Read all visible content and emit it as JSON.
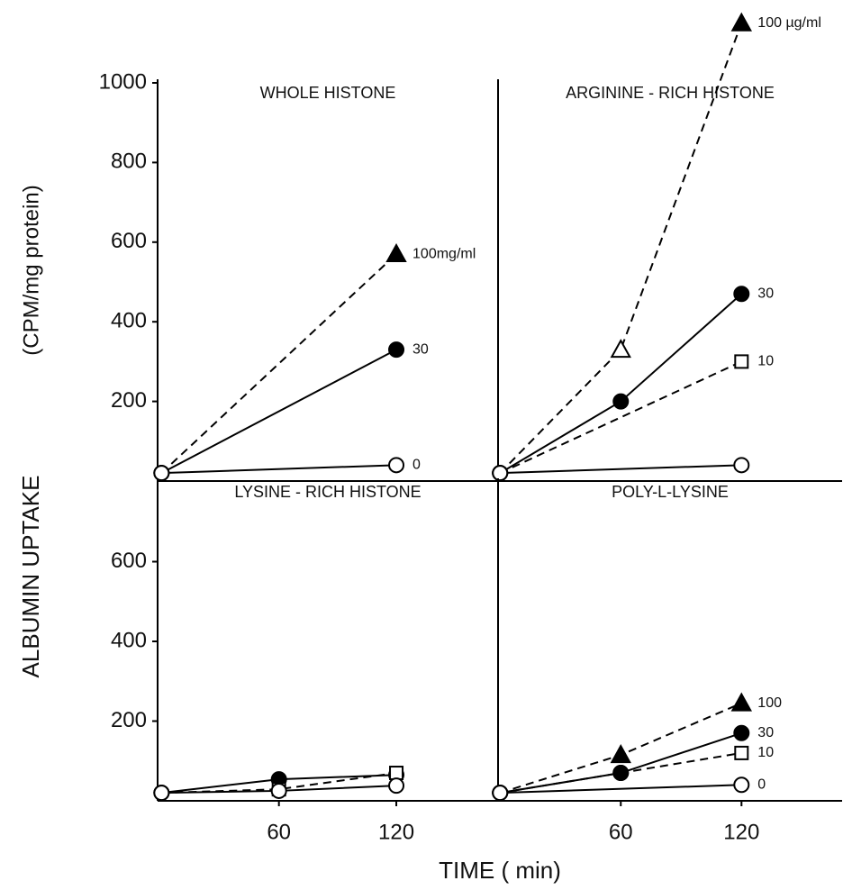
{
  "chart_data": [
    {
      "type": "line",
      "title": "WHOLE HISTONE",
      "ylabel": "(CPM/mg protein)",
      "xlim": [
        -2,
        172
      ],
      "ylim": [
        0,
        1000
      ],
      "yticks": [
        200,
        400,
        600,
        800,
        1000
      ],
      "series": [
        {
          "name": "100mg/ml",
          "x": [
            0,
            120
          ],
          "values": [
            20,
            570
          ],
          "dash": true,
          "markers": [
            "circle-open",
            "triangle-filled"
          ]
        },
        {
          "name": "30",
          "x": [
            0,
            120
          ],
          "values": [
            20,
            330
          ],
          "dash": false,
          "markers": [
            "circle-open",
            "circle-filled"
          ]
        },
        {
          "name": "0",
          "x": [
            0,
            120
          ],
          "values": [
            20,
            40
          ],
          "dash": false,
          "markers": [
            "circle-open",
            "circle-open"
          ]
        }
      ]
    },
    {
      "type": "line",
      "title": "ARGININE - RICH HISTONE",
      "xlim": [
        -1,
        170
      ],
      "ylim": [
        0,
        1000
      ],
      "series": [
        {
          "name": "100 µg/ml",
          "x": [
            0,
            60,
            120
          ],
          "values": [
            20,
            330,
            1150
          ],
          "dash": true,
          "markers": [
            "circle-open",
            "triangle-open",
            "triangle-filled"
          ]
        },
        {
          "name": "30",
          "x": [
            0,
            60,
            120
          ],
          "values": [
            20,
            200,
            470
          ],
          "dash": false,
          "markers": [
            "circle-open",
            "circle-filled",
            "circle-filled"
          ]
        },
        {
          "name": "10",
          "x": [
            0,
            120
          ],
          "values": [
            20,
            300
          ],
          "dash": true,
          "markers": [
            "circle-open",
            "square-open"
          ]
        },
        {
          "x": [
            0,
            120
          ],
          "values": [
            20,
            40
          ],
          "dash": false,
          "markers": [
            "circle-open",
            "circle-open"
          ]
        }
      ]
    },
    {
      "type": "line",
      "title": "LYSINE - RICH HISTONE",
      "ylabel": "ALBUMIN UPTAKE",
      "xlim": [
        -2,
        172
      ],
      "ylim": [
        0,
        800
      ],
      "yticks": [
        200,
        400,
        600
      ],
      "xticks": [
        60,
        120
      ],
      "series": [
        {
          "x": [
            0,
            60,
            120
          ],
          "values": [
            20,
            54,
            65
          ],
          "dash": false,
          "markers": [
            "circle-open",
            "circle-filled",
            "circle-filled"
          ]
        },
        {
          "x": [
            0,
            60,
            120
          ],
          "values": [
            20,
            29,
            70
          ],
          "dash": true,
          "markers": [
            "circle-open",
            "square-open",
            "square-open"
          ]
        },
        {
          "x": [
            0,
            60,
            120
          ],
          "values": [
            20,
            25,
            38
          ],
          "dash": false,
          "markers": [
            "circle-open",
            "circle-open",
            "circle-open"
          ]
        }
      ]
    },
    {
      "type": "line",
      "title": "POLY-L-LYSINE",
      "xlabel": "TIME ( min)",
      "xlim": [
        -1,
        170
      ],
      "ylim": [
        0,
        800
      ],
      "xticks": [
        60,
        120
      ],
      "series": [
        {
          "name": "100",
          "x": [
            0,
            60,
            120
          ],
          "values": [
            20,
            115,
            245
          ],
          "dash": true,
          "markers": [
            "circle-open",
            "triangle-filled",
            "triangle-filled"
          ]
        },
        {
          "name": "30",
          "x": [
            0,
            60,
            120
          ],
          "values": [
            20,
            70,
            170
          ],
          "dash": false,
          "markers": [
            "circle-open",
            "circle-filled",
            "circle-filled"
          ]
        },
        {
          "name": "10",
          "x": [
            0,
            60,
            120
          ],
          "values": [
            20,
            70,
            120
          ],
          "dash": true,
          "markers": [
            "circle-open",
            "circle-filled",
            "square-open"
          ]
        },
        {
          "name": "0",
          "x": [
            0,
            120
          ],
          "values": [
            20,
            40
          ],
          "dash": false,
          "markers": [
            "circle-open",
            "circle-open"
          ]
        }
      ]
    }
  ]
}
